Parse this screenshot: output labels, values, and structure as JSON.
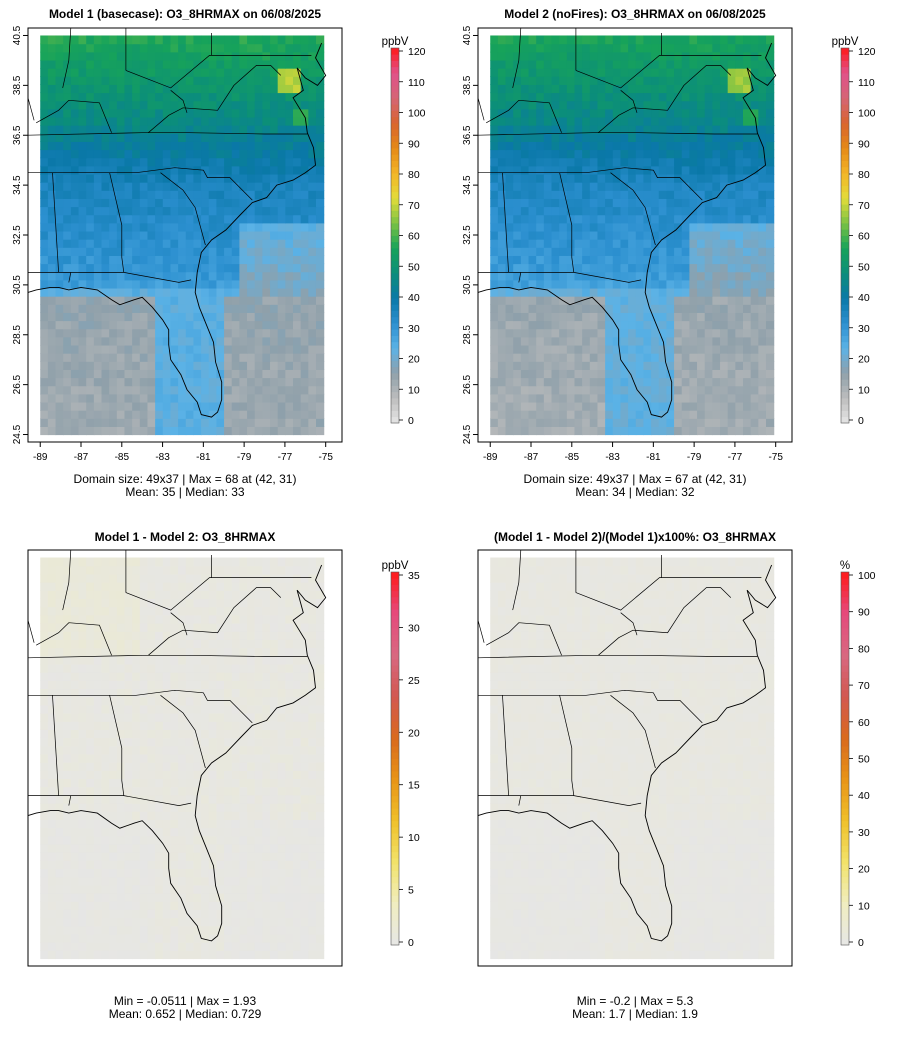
{
  "chart_data": [
    {
      "type": "heatmap",
      "title": "Model 1 (basecase): O3_8HRMAX on 06/08/2025",
      "units": "ppbV",
      "colorbar_ticks": [
        "0",
        "10",
        "20",
        "30",
        "40",
        "50",
        "60",
        "70",
        "80",
        "90",
        "100",
        "110",
        "120"
      ],
      "colorbar_range": [
        0,
        120
      ],
      "x_ticks": [
        "-89",
        "-87",
        "-85",
        "-83",
        "-81",
        "-79",
        "-77",
        "-75"
      ],
      "y_ticks": [
        "24.5",
        "26.5",
        "28.5",
        "30.5",
        "32.5",
        "34.5",
        "36.5",
        "38.5",
        "40.5"
      ],
      "stats_line1": "Domain size: 49x37 | Max = 68 at (42, 31)",
      "stats_line2": "Mean: 35 |  Median: 33",
      "field": {
        "kind": "ozone",
        "mean": 35,
        "max": 68
      }
    },
    {
      "type": "heatmap",
      "title": "Model 2 (noFires): O3_8HRMAX on 06/08/2025",
      "units": "ppbV",
      "colorbar_ticks": [
        "0",
        "10",
        "20",
        "30",
        "40",
        "50",
        "60",
        "70",
        "80",
        "90",
        "100",
        "110",
        "120"
      ],
      "colorbar_range": [
        0,
        120
      ],
      "x_ticks": [
        "-89",
        "-87",
        "-85",
        "-83",
        "-81",
        "-79",
        "-77",
        "-75"
      ],
      "y_ticks": [
        "24.5",
        "26.5",
        "28.5",
        "30.5",
        "32.5",
        "34.5",
        "36.5",
        "38.5",
        "40.5"
      ],
      "stats_line1": "Domain size: 49x37 | Max = 67 at (42, 31)",
      "stats_line2": "Mean: 34 |  Median: 32",
      "field": {
        "kind": "ozone",
        "mean": 34,
        "max": 67
      }
    },
    {
      "type": "heatmap",
      "title": "Model 1 - Model 2: O3_8HRMAX",
      "units": "ppbV",
      "colorbar_ticks": [
        "0",
        "5",
        "10",
        "15",
        "20",
        "25",
        "30",
        "35"
      ],
      "colorbar_range": [
        0,
        35
      ],
      "stats_line1": "Min = -0.0511 | Max = 1.93",
      "stats_line2": "Mean: 0.652 |  Median: 0.729",
      "field": {
        "kind": "diff",
        "min": -0.0511,
        "max": 1.93
      }
    },
    {
      "type": "heatmap",
      "title": "(Model 1 - Model 2)/(Model 1)x100%: O3_8HRMAX",
      "units": "%",
      "colorbar_ticks": [
        "0",
        "10",
        "20",
        "30",
        "40",
        "50",
        "60",
        "70",
        "80",
        "90",
        "100"
      ],
      "colorbar_range": [
        0,
        100
      ],
      "stats_line1": "Min = -0.2 | Max = 5.3",
      "stats_line2": "Mean: 1.7 |  Median: 1.9",
      "field": {
        "kind": "pct",
        "min": -0.2,
        "max": 5.3
      }
    }
  ],
  "colors": {
    "ramp_ppbv": [
      "#e6e6e6",
      "#bdbdbd",
      "#8fa0aa",
      "#5bb2e6",
      "#2b8fcf",
      "#0a78a8",
      "#0b8e7a",
      "#17a35a",
      "#7cc243",
      "#e3dc3a",
      "#f3b427",
      "#e58a17",
      "#d8642f",
      "#d56575",
      "#e0528a",
      "#ff1a1a"
    ],
    "ramp_diff": [
      "#e6e6e6",
      "#f0edc0",
      "#f2e36a",
      "#f0c02a",
      "#e89416",
      "#d96a1e",
      "#d25850",
      "#d86880",
      "#e54a7c",
      "#ff1a1a"
    ],
    "coast": "#000000",
    "frame": "#000000"
  }
}
